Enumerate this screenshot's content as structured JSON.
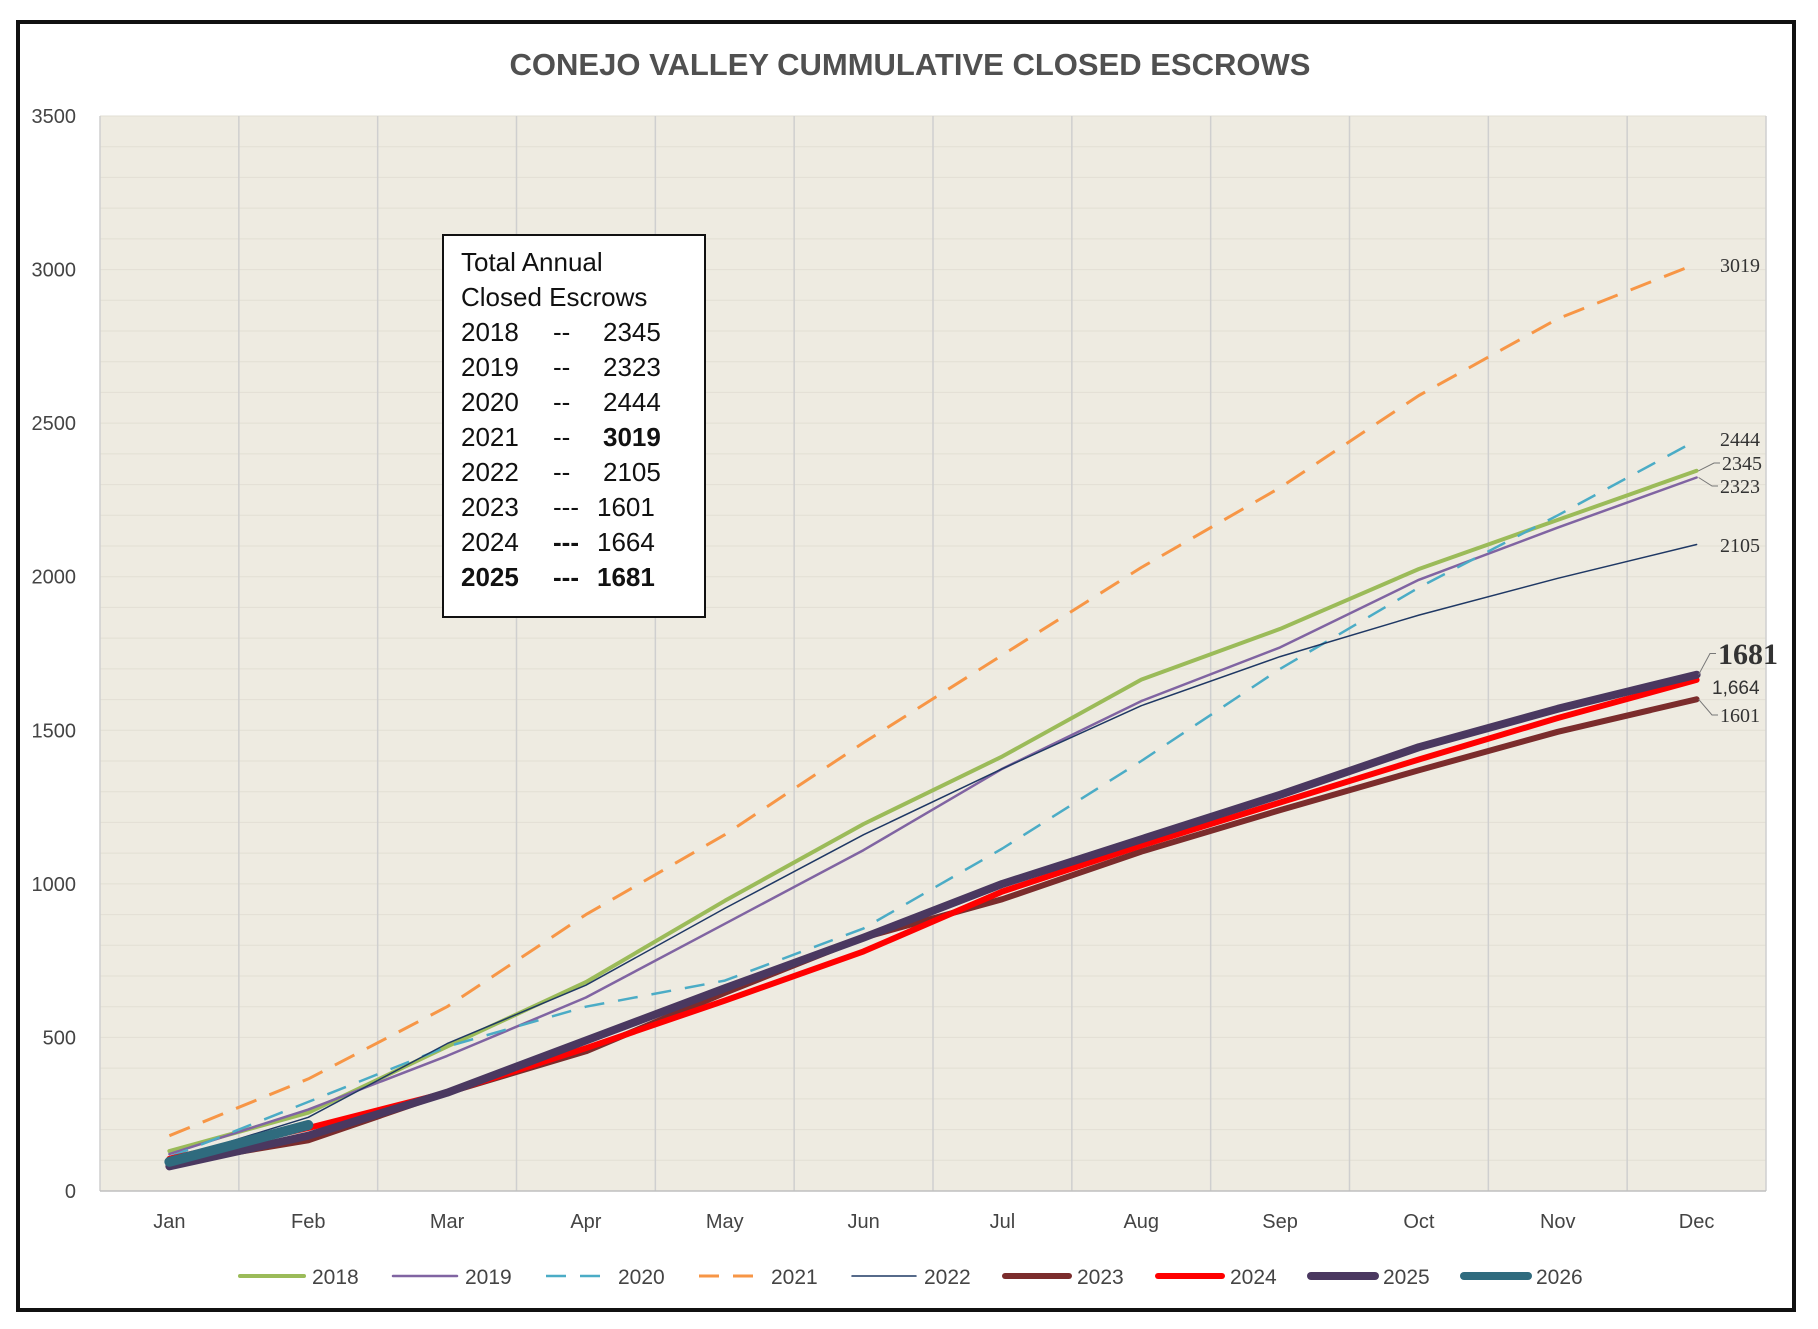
{
  "chart_data": {
    "type": "line",
    "title": "CONEJO VALLEY CUMMULATIVE CLOSED ESCROWS",
    "xlabel": "",
    "ylabel": "",
    "ylim": [
      0,
      3500
    ],
    "yticks": [
      0,
      500,
      1000,
      1500,
      2000,
      2500,
      3000,
      3500
    ],
    "categories": [
      "Jan",
      "Feb",
      "Mar",
      "Apr",
      "May",
      "Jun",
      "Jul",
      "Aug",
      "Sep",
      "Oct",
      "Nov",
      "Dec"
    ],
    "grid": "vertical",
    "legend_position": "bottom",
    "series": [
      {
        "name": "2018",
        "color": "#9BBB59",
        "width": 4,
        "dash": "",
        "end_label": "2345",
        "values": [
          130,
          255,
          470,
          680,
          945,
          1195,
          1415,
          1665,
          1830,
          2025,
          2185,
          2345
        ]
      },
      {
        "name": "2019",
        "color": "#8064A2",
        "width": 2.5,
        "dash": "",
        "end_label": "2323",
        "values": [
          120,
          265,
          440,
          630,
          870,
          1110,
          1375,
          1595,
          1770,
          1990,
          2160,
          2323
        ]
      },
      {
        "name": "2020",
        "color": "#4BACC6",
        "width": 2.5,
        "dash": "20,14",
        "end_label": "2444",
        "values": [
          110,
          290,
          470,
          600,
          685,
          855,
          1115,
          1400,
          1700,
          1965,
          2200,
          2444
        ]
      },
      {
        "name": "2021",
        "color": "#F79646",
        "width": 3,
        "dash": "22,14",
        "end_label": "3019",
        "values": [
          180,
          365,
          600,
          900,
          1160,
          1460,
          1745,
          2030,
          2290,
          2590,
          2840,
          3019
        ]
      },
      {
        "name": "2022",
        "color": "#1F3864",
        "width": 1.5,
        "dash": "",
        "end_label": "2105",
        "values": [
          100,
          240,
          480,
          670,
          920,
          1160,
          1375,
          1580,
          1740,
          1875,
          1995,
          2105
        ]
      },
      {
        "name": "2023",
        "color": "#7B2C2C",
        "width": 6,
        "dash": "",
        "end_label": "1601",
        "values": [
          90,
          165,
          320,
          455,
          645,
          825,
          950,
          1105,
          1240,
          1370,
          1495,
          1601
        ]
      },
      {
        "name": "2024",
        "color": "#FF0000",
        "width": 6,
        "dash": "",
        "end_label": "1,664",
        "values": [
          105,
          205,
          320,
          465,
          620,
          780,
          975,
          1125,
          1265,
          1405,
          1540,
          1664
        ]
      },
      {
        "name": "2025",
        "color": "#4A3860",
        "width": 8,
        "dash": "",
        "end_label": "1681",
        "values": [
          80,
          180,
          320,
          490,
          660,
          825,
          1000,
          1145,
          1290,
          1445,
          1570,
          1681
        ]
      },
      {
        "name": "2026",
        "color": "#2F6B7E",
        "width": 10,
        "dash": "",
        "end_label": "",
        "values": [
          95,
          215,
          null,
          null,
          null,
          null,
          null,
          null,
          null,
          null,
          null,
          null
        ]
      }
    ]
  },
  "annotation_box": {
    "lines": [
      {
        "label": "Total Annual",
        "sep": "",
        "value": "",
        "bold": false
      },
      {
        "label": "Closed Escrows",
        "sep": "",
        "value": "",
        "bold": false
      },
      {
        "label": "2018",
        "sep": "--",
        "value": "2345",
        "bold": false
      },
      {
        "label": "2019",
        "sep": "--",
        "value": "2323",
        "bold": false
      },
      {
        "label": "2020",
        "sep": "--",
        "value": "2444",
        "bold": false
      },
      {
        "label": "2021",
        "sep": "--",
        "value": "3019",
        "bold": false,
        "value_bold": true
      },
      {
        "label": "2022",
        "sep": "--",
        "value": "2105",
        "bold": false
      },
      {
        "label": "2023",
        "sep": "---",
        "value": "1601",
        "bold": false
      },
      {
        "label": "2024",
        "sep": "---",
        "value": "1664",
        "bold": false,
        "sep_bold": true
      },
      {
        "label": "2025",
        "sep": "---",
        "value": "1681",
        "bold": true
      }
    ]
  }
}
